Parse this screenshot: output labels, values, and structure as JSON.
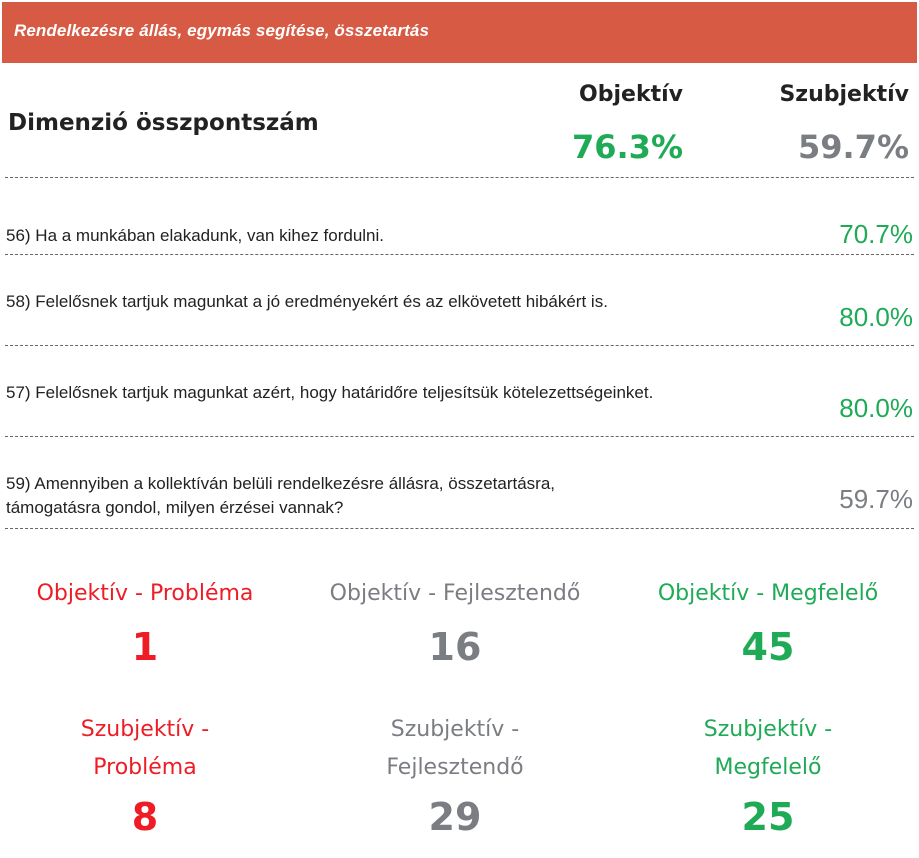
{
  "banner": {
    "title": "Rendelkezésre állás, egymás segítése, összetartás",
    "color": "#d75a44"
  },
  "summary": {
    "label": "Dimenzió összpontszám",
    "objective_header": "Objektív",
    "subjective_header": "Szubjektív",
    "objective_value": "76.3%",
    "subjective_value": "59.7%"
  },
  "questions": [
    {
      "text": "56) Ha a munkában elakadunk, van kihez fordulni.",
      "value": "70.7%",
      "status": "green"
    },
    {
      "text": "58) Felelősnek tartjuk magunkat a jó eredményekért és az elkövetett hibákért is.",
      "value": "80.0%",
      "status": "green"
    },
    {
      "text": "57) Felelősnek tartjuk magunkat azért, hogy határidőre teljesítsük kötelezettségeinket.",
      "value": "80.0%",
      "status": "green"
    },
    {
      "text": "59) Amennyiben a kollektíván belüli rendelkezésre állásra, összetartásra, támogatásra gondol, milyen érzései vannak?",
      "value": "59.7%",
      "status": "gray"
    }
  ],
  "objective_counts": [
    {
      "label": "Objektív - Probléma",
      "count": "1",
      "color": "#ee1c25"
    },
    {
      "label": "Objektív - Fejlesztendő",
      "count": "16",
      "color": "#7a7d82"
    },
    {
      "label": "Objektív - Megfelelő",
      "count": "45",
      "color": "#1faa56"
    }
  ],
  "subjective_counts": [
    {
      "label": "Szubjektív - Probléma",
      "count": "8",
      "color": "#ee1c25"
    },
    {
      "label": "Szubjektív - Fejlesztendő",
      "count": "29",
      "color": "#7a7d82"
    },
    {
      "label": "Szubjektív - Megfelelő",
      "count": "25",
      "color": "#1faa56"
    }
  ]
}
